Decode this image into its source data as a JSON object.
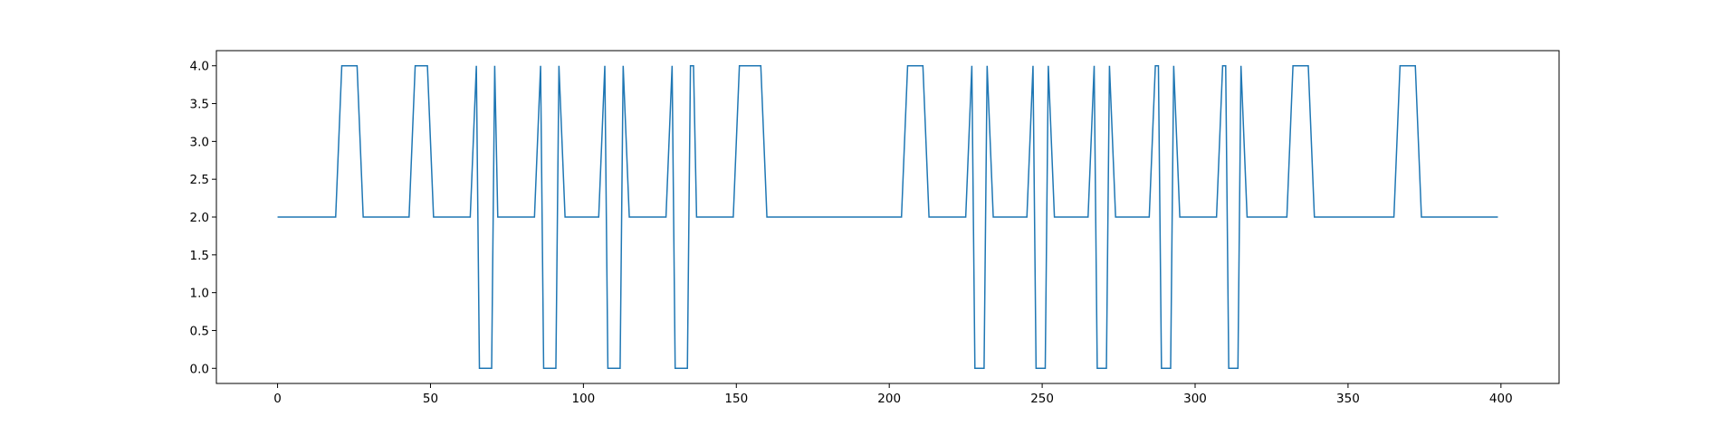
{
  "chart_data": {
    "type": "line",
    "title": "",
    "xlabel": "",
    "ylabel": "",
    "xlim": [
      -20,
      419
    ],
    "ylim": [
      -0.2,
      4.2
    ],
    "x_ticks": [
      0,
      50,
      100,
      150,
      200,
      250,
      300,
      350,
      400
    ],
    "y_ticks": [
      0.0,
      0.5,
      1.0,
      1.5,
      2.0,
      2.5,
      3.0,
      3.5,
      4.0
    ],
    "x_tick_labels": [
      "0",
      "50",
      "100",
      "150",
      "200",
      "250",
      "300",
      "350",
      "400"
    ],
    "y_tick_labels": [
      "0.0",
      "0.5",
      "1.0",
      "1.5",
      "2.0",
      "2.5",
      "3.0",
      "3.5",
      "4.0"
    ],
    "grid": false,
    "legend": "none",
    "color": "#1f77b4",
    "series": [
      {
        "x": [
          0,
          19,
          21,
          26,
          28,
          43,
          45,
          49,
          51,
          63,
          65,
          66,
          70,
          71,
          72,
          84,
          86,
          87,
          91,
          92,
          94,
          105,
          107,
          108,
          112,
          113,
          115,
          127,
          129,
          130,
          134,
          135,
          136,
          137,
          149,
          151,
          158,
          160,
          204,
          206,
          211,
          213,
          225,
          227,
          228,
          231,
          232,
          234,
          245,
          247,
          248,
          251,
          252,
          254,
          265,
          267,
          268,
          271,
          272,
          274,
          285,
          287,
          288,
          289,
          292,
          293,
          295,
          307,
          309,
          310,
          311,
          314,
          315,
          317,
          330,
          332,
          337,
          339,
          365,
          367,
          372,
          374,
          399
        ],
        "y": [
          2,
          2,
          4,
          4,
          2,
          2,
          4,
          4,
          2,
          2,
          4,
          0,
          0,
          4,
          2,
          2,
          4,
          0,
          0,
          4,
          2,
          2,
          4,
          0,
          0,
          4,
          2,
          2,
          4,
          0,
          0,
          4,
          4,
          2,
          2,
          4,
          4,
          2,
          2,
          4,
          4,
          2,
          2,
          4,
          0,
          0,
          4,
          2,
          2,
          4,
          0,
          0,
          4,
          2,
          2,
          4,
          0,
          0,
          4,
          2,
          2,
          4,
          4,
          0,
          0,
          4,
          2,
          2,
          4,
          4,
          0,
          0,
          4,
          2,
          2,
          4,
          4,
          2,
          2,
          4,
          4,
          2,
          2
        ]
      }
    ]
  }
}
